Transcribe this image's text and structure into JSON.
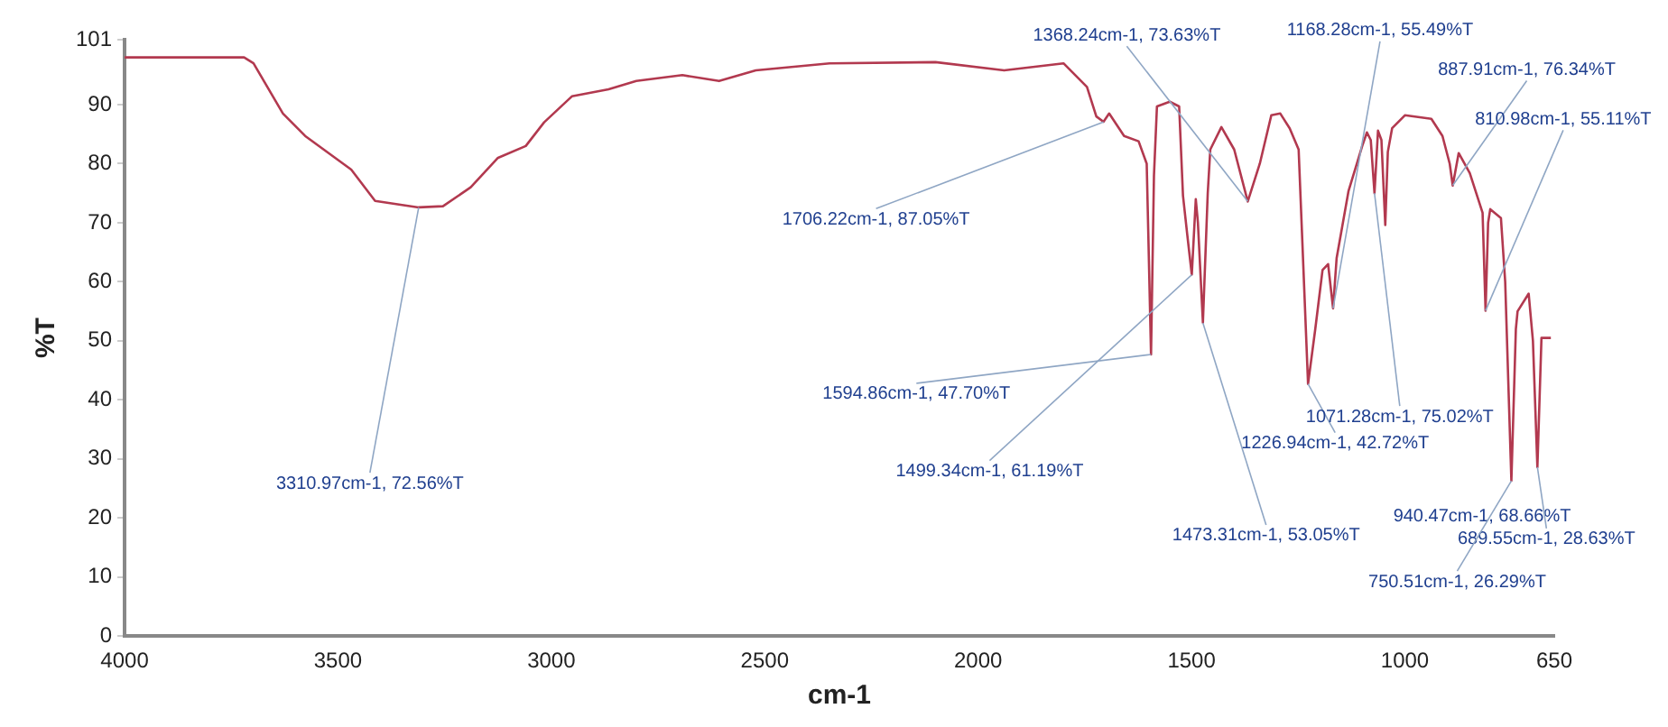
{
  "chart_data": {
    "type": "line",
    "xlabel": "cm-1",
    "ylabel": "%T",
    "xlim": [
      4000,
      650
    ],
    "xticks": [
      4000,
      3500,
      3000,
      2500,
      2000,
      1500,
      1000,
      650
    ],
    "ylim": [
      0,
      101
    ],
    "yticks": [
      0,
      10,
      20,
      30,
      40,
      50,
      60,
      70,
      80,
      90,
      101
    ],
    "marker": "none",
    "grid": false,
    "legend": false,
    "series": [
      {
        "color": "#b2394f",
        "x": [
          4000,
          3800,
          3720,
          3698,
          3629,
          3577,
          3469,
          3413,
          3310.97,
          3254,
          3189,
          3125,
          3060,
          3017,
          2952,
          2866,
          2801,
          2693,
          2607,
          2521,
          2348,
          2100,
          1939,
          1800,
          1745,
          1723,
          1706.22,
          1693,
          1658,
          1624,
          1605,
          1594.86,
          1588,
          1581,
          1551,
          1529,
          1520,
          1510,
          1499.34,
          1490,
          1485,
          1473.31,
          1462,
          1456,
          1430,
          1400,
          1368.24,
          1340,
          1313,
          1292,
          1270,
          1249,
          1226.94,
          1210,
          1193,
          1180,
          1168.28,
          1160,
          1132,
          1100,
          1089,
          1080,
          1071.28,
          1063,
          1055,
          1046,
          1040,
          1030,
          1000,
          938,
          912,
          895,
          887.91,
          874,
          848,
          818,
          810.98,
          805,
          800,
          775,
          765,
          750.51,
          740,
          736,
          710,
          700,
          689.55,
          680,
          658
        ],
        "values": [
          98,
          98,
          98,
          97,
          88.5,
          84.7,
          79,
          73.7,
          72.6,
          72.8,
          76,
          81,
          83,
          87,
          91.4,
          92.6,
          94,
          95,
          94,
          95.8,
          97,
          97.2,
          95.8,
          97,
          93,
          88,
          87.1,
          88.5,
          84.7,
          83.8,
          80,
          47.7,
          78,
          89.7,
          90.5,
          89.7,
          74.6,
          68,
          61.2,
          74,
          70,
          53.1,
          75,
          82.4,
          86.2,
          82.4,
          73.6,
          80,
          88.2,
          88.5,
          86,
          82.4,
          42.7,
          52,
          62,
          63,
          55.5,
          64,
          75.4,
          83,
          85.3,
          84,
          75,
          85.6,
          84,
          69.6,
          82,
          86,
          88.2,
          87.6,
          84.7,
          80,
          76.3,
          81.8,
          78.4,
          71.7,
          55.1,
          70,
          72.3,
          70.8,
          60,
          26.3,
          52,
          55,
          58,
          50,
          28.6,
          50.5,
          50.5
        ]
      }
    ],
    "annotations": [
      {
        "text": "3310.97cm-1, 72.56%T",
        "x": 3310.97,
        "y": 72.56
      },
      {
        "text": "1706.22cm-1, 87.05%T",
        "x": 1706.22,
        "y": 87.05
      },
      {
        "text": "1368.24cm-1, 73.63%T",
        "x": 1368.24,
        "y": 73.63
      },
      {
        "text": "1168.28cm-1, 55.49%T",
        "x": 1168.28,
        "y": 55.49
      },
      {
        "text": "887.91cm-1, 76.34%T",
        "x": 887.91,
        "y": 76.34
      },
      {
        "text": "810.98cm-1, 55.11%T",
        "x": 810.98,
        "y": 55.11
      },
      {
        "text": "1594.86cm-1, 47.70%T",
        "x": 1594.86,
        "y": 47.7
      },
      {
        "text": "1499.34cm-1, 61.19%T",
        "x": 1499.34,
        "y": 61.19
      },
      {
        "text": "1473.31cm-1, 53.05%T",
        "x": 1473.31,
        "y": 53.05
      },
      "940.47cm-1, 68.66%T",
      {
        "text": "1226.94cm-1, 42.72%T",
        "x": 1226.94,
        "y": 42.72
      },
      {
        "text": "1071.28cm-1, 75.02%T",
        "x": 1071.28,
        "y": 75.02
      },
      {
        "text": "689.55cm-1, 28.63%T",
        "x": 689.55,
        "y": 28.63
      },
      {
        "text": "750.51cm-1, 26.29%T",
        "x": 750.51,
        "y": 26.29
      }
    ]
  }
}
